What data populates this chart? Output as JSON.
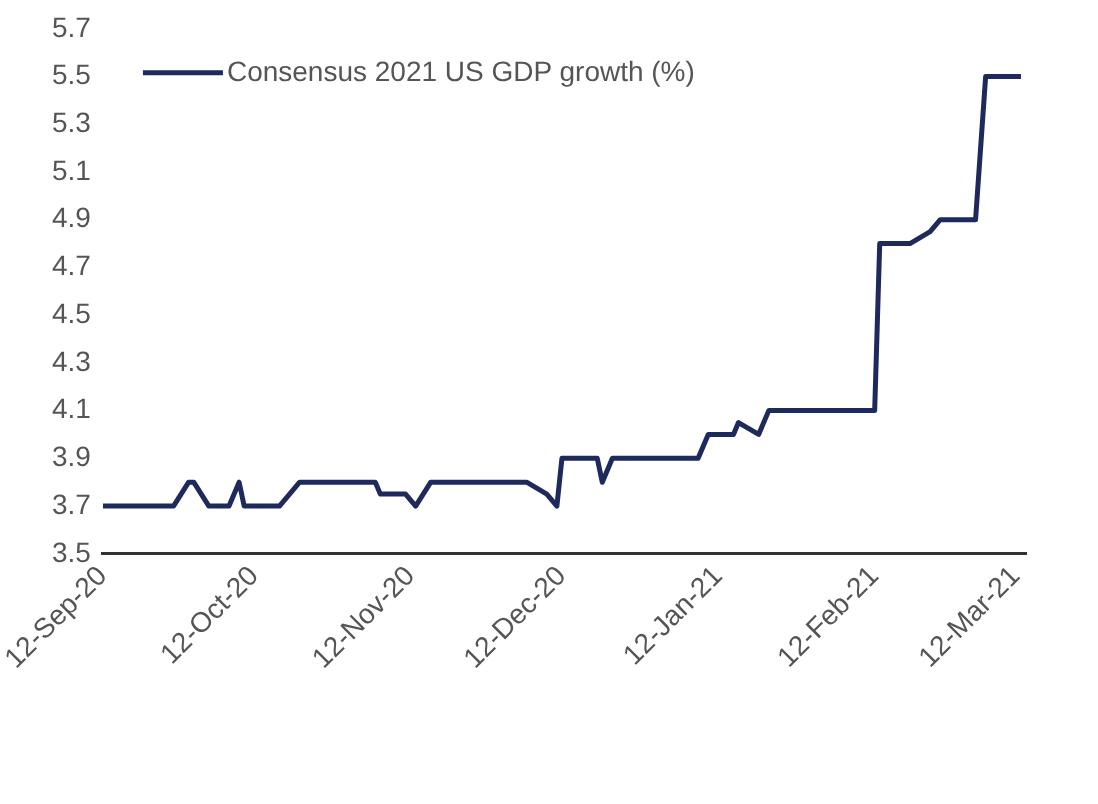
{
  "chart_data": {
    "type": "step",
    "legend": "top left",
    "line_style": "solid",
    "x": [
      "2020-09-12",
      "2020-09-26",
      "2020-09-29",
      "2020-09-30",
      "2020-10-03",
      "2020-10-07",
      "2020-10-09",
      "2020-10-10",
      "2020-10-17",
      "2020-10-21",
      "2020-11-05",
      "2020-11-06",
      "2020-11-11",
      "2020-11-13",
      "2020-11-16",
      "2020-12-05",
      "2020-12-09",
      "2020-12-11",
      "2020-12-12",
      "2020-12-19",
      "2020-12-20",
      "2020-12-22",
      "2021-01-08",
      "2021-01-10",
      "2021-01-15",
      "2021-01-16",
      "2021-01-20",
      "2021-01-22",
      "2021-02-12",
      "2021-02-13",
      "2021-02-19",
      "2021-02-23",
      "2021-02-25",
      "2021-03-04",
      "2021-03-06",
      "2021-03-13"
    ],
    "series": [
      {
        "name": "Consensus 2021 US GDP growth (%)",
        "color": "#1f2a5c",
        "values": [
          3.7,
          3.7,
          3.8,
          3.8,
          3.7,
          3.7,
          3.8,
          3.7,
          3.7,
          3.8,
          3.8,
          3.75,
          3.75,
          3.7,
          3.8,
          3.8,
          3.75,
          3.7,
          3.9,
          3.9,
          3.8,
          3.9,
          3.9,
          4.0,
          4.0,
          4.05,
          4.0,
          4.1,
          4.1,
          4.8,
          4.8,
          4.85,
          4.9,
          4.9,
          5.5,
          5.5
        ]
      }
    ],
    "xlim": [
      "2020-09-12",
      "2021-03-14"
    ],
    "xticks": [
      {
        "value": "2020-09-12",
        "label": "12-Sep-20"
      },
      {
        "value": "2020-10-12",
        "label": "12-Oct-20"
      },
      {
        "value": "2020-11-12",
        "label": "12-Nov-20"
      },
      {
        "value": "2020-12-12",
        "label": "12-Dec-20"
      },
      {
        "value": "2021-01-12",
        "label": "12-Jan-21"
      },
      {
        "value": "2021-02-12",
        "label": "12-Feb-21"
      },
      {
        "value": "2021-03-12",
        "label": "12-Mar-21"
      }
    ],
    "ylim": [
      3.5,
      5.7
    ],
    "yticks": [
      3.5,
      3.7,
      3.9,
      4.1,
      4.3,
      4.5,
      4.7,
      4.9,
      5.1,
      5.3,
      5.5,
      5.7
    ],
    "grid": false
  }
}
